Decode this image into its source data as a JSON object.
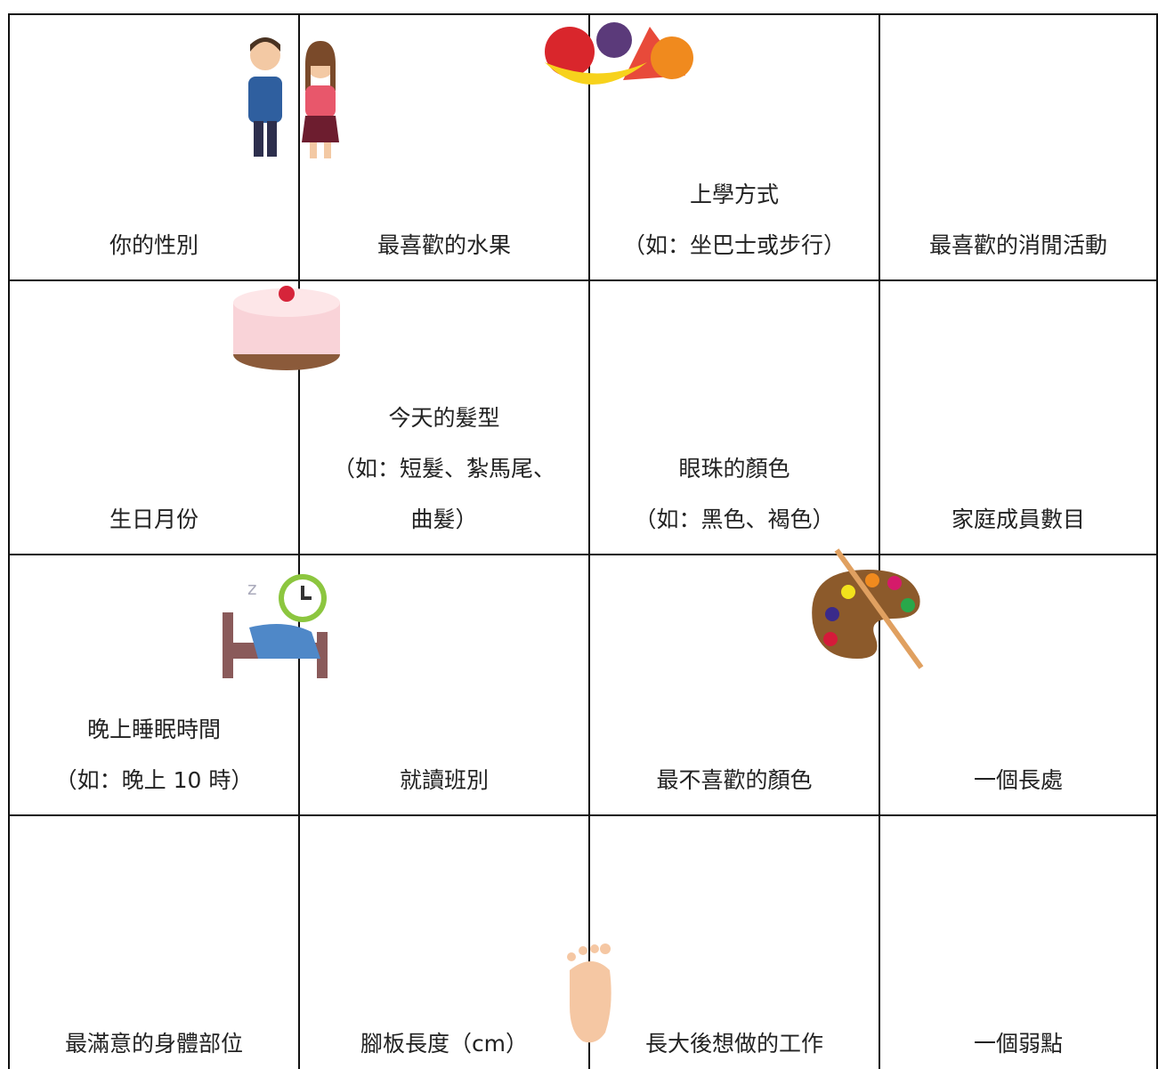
{
  "table": {
    "rows": [
      [
        [
          "你的性別"
        ],
        [
          "最喜歡的水果"
        ],
        [
          "上學方式",
          "（如：坐巴士或步行）"
        ],
        [
          "最喜歡的消閒活動"
        ]
      ],
      [
        [
          "生日月份"
        ],
        [
          "今天的髮型",
          "（如：短髮、紮馬尾、",
          "曲髮）"
        ],
        [
          "眼珠的顏色",
          "（如：黑色、褐色）"
        ],
        [
          "家庭成員數目"
        ]
      ],
      [
        [
          "晚上睡眠時間",
          "（如：晚上 10 時）"
        ],
        [
          "就讀班別"
        ],
        [
          "最不喜歡的顏色"
        ],
        [
          "一個長處"
        ]
      ],
      [
        [
          "最滿意的身體部位"
        ],
        [
          "腳板長度（cm）"
        ],
        [
          "長大後想做的工作"
        ],
        [
          "一個弱點"
        ]
      ]
    ]
  }
}
